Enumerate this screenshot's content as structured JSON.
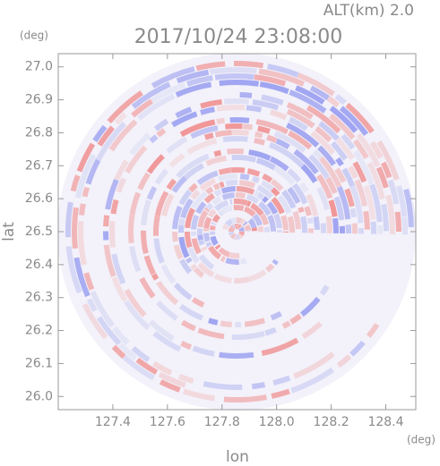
{
  "chart_data": {
    "type": "radar-field",
    "title": "2017/10/24 23:08:00",
    "annotation": "ALT(km) 2.0",
    "x_label": "lon",
    "y_label": "lat",
    "x_unit": "(deg)",
    "y_unit": "(deg)",
    "xlim": [
      127.2,
      128.51
    ],
    "ylim": [
      25.96,
      27.04
    ],
    "xticks": [
      127.4,
      127.6,
      127.8,
      {
        "value": 128.0,
        "label": "128.0"
      },
      128.2,
      128.4
    ],
    "yticks": [
      {
        "value": 26.0,
        "label": "26.0"
      },
      26.1,
      26.2,
      26.3,
      26.4,
      26.5,
      26.6,
      26.7,
      26.8,
      26.9,
      {
        "value": 27.0,
        "label": "27.0"
      }
    ]
  }
}
